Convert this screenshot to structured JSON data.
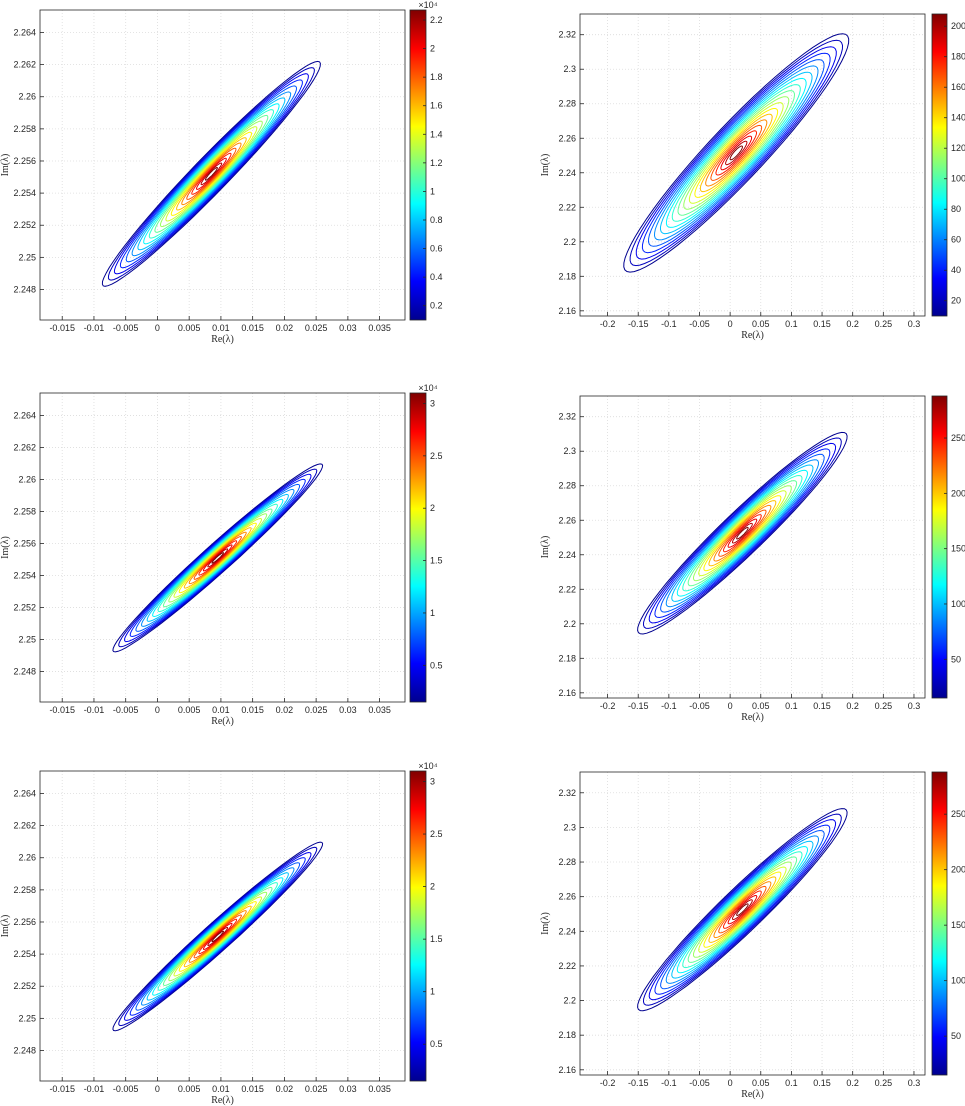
{
  "colors": {
    "jet": [
      "#00008f",
      "#0000ff",
      "#007fff",
      "#00ffff",
      "#7fff7f",
      "#ffff00",
      "#ff7f00",
      "#ff0000",
      "#800000"
    ],
    "grid": "#dcdcdc",
    "axis": "#262626"
  },
  "chart_data": [
    {
      "type": "contour",
      "xlabel": "Re(λ)",
      "ylabel": "Im(λ)",
      "xlim": [
        -0.0185,
        0.039
      ],
      "ylim": [
        2.2461,
        2.2654
      ],
      "xticks": [
        "-0.015",
        "-0.01",
        "-0.005",
        "0",
        "0.005",
        "0.01",
        "0.015",
        "0.02",
        "0.025",
        "0.03",
        "0.035"
      ],
      "xtick_values": [
        -0.015,
        -0.01,
        -0.005,
        0,
        0.005,
        0.01,
        0.015,
        0.02,
        0.025,
        0.03,
        0.035
      ],
      "yticks": [
        "2.248",
        "2.25",
        "2.252",
        "2.254",
        "2.256",
        "2.258",
        "2.26",
        "2.262",
        "2.264"
      ],
      "ytick_values": [
        2.248,
        2.25,
        2.252,
        2.254,
        2.256,
        2.258,
        2.26,
        2.262,
        2.264
      ],
      "center": [
        0.0085,
        2.2552
      ],
      "slope": 0.4,
      "major_halfwidth": 0.0185,
      "minor_halfwidth": 0.00145,
      "num_levels": 20,
      "cbar": {
        "range": [
          0.1,
          2.27
        ],
        "ticks": [
          "0.2",
          "0.4",
          "0.6",
          "0.8",
          "1",
          "1.2",
          "1.4",
          "1.6",
          "1.8",
          "2",
          "2.2"
        ],
        "tick_values": [
          0.2,
          0.4,
          0.6,
          0.8,
          1,
          1.2,
          1.4,
          1.6,
          1.8,
          2,
          2.2
        ],
        "exponent": "×10⁴"
      }
    },
    {
      "type": "contour",
      "xlabel": "Re(λ)",
      "ylabel": "Im(λ)",
      "xlim": [
        -0.245,
        0.318
      ],
      "ylim": [
        2.157,
        2.332
      ],
      "xticks": [
        "-0.2",
        "-0.15",
        "-0.1",
        "-0.05",
        "0",
        "0.05",
        "0.1",
        "0.15",
        "0.2",
        "0.25",
        "0.3"
      ],
      "xtick_values": [
        -0.2,
        -0.15,
        -0.1,
        -0.05,
        0,
        0.05,
        0.1,
        0.15,
        0.2,
        0.25,
        0.3
      ],
      "yticks": [
        "2.16",
        "2.18",
        "2.2",
        "2.22",
        "2.24",
        "2.26",
        "2.28",
        "2.3",
        "2.32"
      ],
      "ytick_values": [
        2.16,
        2.18,
        2.2,
        2.22,
        2.24,
        2.26,
        2.28,
        2.3,
        2.32
      ],
      "center": [
        0.01,
        2.2515
      ],
      "slope": 0.36,
      "major_halfwidth": 0.195,
      "minor_halfwidth": 0.0215,
      "num_levels": 20,
      "cbar": {
        "range": [
          10,
          208
        ],
        "ticks": [
          "20",
          "40",
          "60",
          "80",
          "100",
          "120",
          "140",
          "160",
          "180",
          "200"
        ],
        "tick_values": [
          20,
          40,
          60,
          80,
          100,
          120,
          140,
          160,
          180,
          200
        ],
        "exponent": ""
      }
    },
    {
      "type": "contour",
      "xlabel": "Re(λ)",
      "ylabel": "Im(λ)",
      "xlim": [
        -0.0185,
        0.039
      ],
      "ylim": [
        2.2461,
        2.2654
      ],
      "xticks": [
        "-0.015",
        "-0.01",
        "-0.005",
        "0",
        "0.005",
        "0.01",
        "0.015",
        "0.02",
        "0.025",
        "0.03",
        "0.035"
      ],
      "xtick_values": [
        -0.015,
        -0.01,
        -0.005,
        0,
        0.005,
        0.01,
        0.015,
        0.02,
        0.025,
        0.03,
        0.035
      ],
      "yticks": [
        "2.248",
        "2.25",
        "2.252",
        "2.254",
        "2.256",
        "2.258",
        "2.26",
        "2.262",
        "2.264"
      ],
      "ytick_values": [
        2.248,
        2.25,
        2.252,
        2.254,
        2.256,
        2.258,
        2.26,
        2.262,
        2.264
      ],
      "center": [
        0.0095,
        2.2551
      ],
      "slope": 0.35,
      "major_halfwidth": 0.0175,
      "minor_halfwidth": 0.0011,
      "num_levels": 20,
      "cbar": {
        "range": [
          0.15,
          3.1
        ],
        "ticks": [
          "0.5",
          "1",
          "1.5",
          "2",
          "2.5",
          "3"
        ],
        "tick_values": [
          0.5,
          1,
          1.5,
          2,
          2.5,
          3
        ],
        "exponent": "×10⁴"
      }
    },
    {
      "type": "contour",
      "xlabel": "Re(λ)",
      "ylabel": "Im(λ)",
      "xlim": [
        -0.245,
        0.318
      ],
      "ylim": [
        2.157,
        2.332
      ],
      "xticks": [
        "-0.2",
        "-0.15",
        "-0.1",
        "-0.05",
        "0",
        "0.05",
        "0.1",
        "0.15",
        "0.2",
        "0.25",
        "0.3"
      ],
      "xtick_values": [
        -0.2,
        -0.15,
        -0.1,
        -0.05,
        0,
        0.05,
        0.1,
        0.15,
        0.2,
        0.25,
        0.3
      ],
      "yticks": [
        "2.16",
        "2.18",
        "2.2",
        "2.22",
        "2.24",
        "2.26",
        "2.28",
        "2.3",
        "2.32"
      ],
      "ytick_values": [
        2.16,
        2.18,
        2.2,
        2.22,
        2.24,
        2.26,
        2.28,
        2.3,
        2.32
      ],
      "center": [
        0.02,
        2.2525
      ],
      "slope": 0.33,
      "major_halfwidth": 0.18,
      "minor_halfwidth": 0.016,
      "num_levels": 20,
      "cbar": {
        "range": [
          15,
          288
        ],
        "ticks": [
          "50",
          "100",
          "150",
          "200",
          "250"
        ],
        "tick_values": [
          50,
          100,
          150,
          200,
          250
        ],
        "exponent": ""
      }
    },
    {
      "type": "contour",
      "xlabel": "Re(λ)",
      "ylabel": "Im(λ)",
      "xlim": [
        -0.0185,
        0.039
      ],
      "ylim": [
        2.2461,
        2.2654
      ],
      "xticks": [
        "-0.015",
        "-0.01",
        "-0.005",
        "0",
        "0.005",
        "0.01",
        "0.015",
        "0.02",
        "0.025",
        "0.03",
        "0.035"
      ],
      "xtick_values": [
        -0.015,
        -0.01,
        -0.005,
        0,
        0.005,
        0.01,
        0.015,
        0.02,
        0.025,
        0.03,
        0.035
      ],
      "yticks": [
        "2.248",
        "2.25",
        "2.252",
        "2.254",
        "2.256",
        "2.258",
        "2.26",
        "2.262",
        "2.264"
      ],
      "ytick_values": [
        2.248,
        2.25,
        2.252,
        2.254,
        2.256,
        2.258,
        2.26,
        2.262,
        2.264
      ],
      "center": [
        0.0095,
        2.2551
      ],
      "slope": 0.35,
      "major_halfwidth": 0.0175,
      "minor_halfwidth": 0.0011,
      "num_levels": 20,
      "cbar": {
        "range": [
          0.15,
          3.1
        ],
        "ticks": [
          "0.5",
          "1",
          "1.5",
          "2",
          "2.5",
          "3"
        ],
        "tick_values": [
          0.5,
          1,
          1.5,
          2,
          2.5,
          3
        ],
        "exponent": "×10⁴"
      }
    },
    {
      "type": "contour",
      "xlabel": "Re(λ)",
      "ylabel": "Im(λ)",
      "xlim": [
        -0.245,
        0.318
      ],
      "ylim": [
        2.157,
        2.332
      ],
      "xticks": [
        "-0.2",
        "-0.15",
        "-0.1",
        "-0.05",
        "0",
        "0.05",
        "0.1",
        "0.15",
        "0.2",
        "0.25",
        "0.3"
      ],
      "xtick_values": [
        -0.2,
        -0.15,
        -0.1,
        -0.05,
        0,
        0.05,
        0.1,
        0.15,
        0.2,
        0.25,
        0.3
      ],
      "yticks": [
        "2.16",
        "2.18",
        "2.2",
        "2.22",
        "2.24",
        "2.26",
        "2.28",
        "2.3",
        "2.32"
      ],
      "ytick_values": [
        2.16,
        2.18,
        2.2,
        2.22,
        2.24,
        2.26,
        2.28,
        2.3,
        2.32
      ],
      "center": [
        0.02,
        2.2525
      ],
      "slope": 0.33,
      "major_halfwidth": 0.18,
      "minor_halfwidth": 0.016,
      "num_levels": 20,
      "cbar": {
        "range": [
          15,
          288
        ],
        "ticks": [
          "50",
          "100",
          "150",
          "200",
          "250"
        ],
        "tick_values": [
          50,
          100,
          150,
          200,
          250
        ],
        "exponent": ""
      }
    }
  ]
}
